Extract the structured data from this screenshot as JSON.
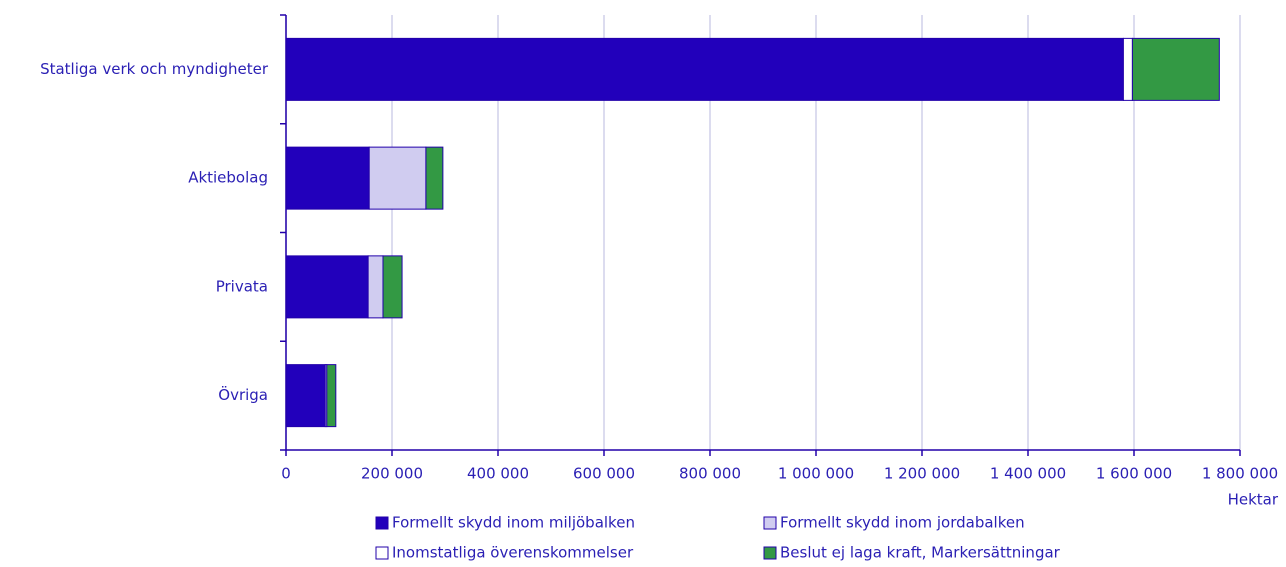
{
  "chart_data": {
    "type": "stacked-bar-horizontal",
    "categories": [
      "Statliga verk och myndigheter",
      "Aktiebolag",
      "Privata",
      "Övriga"
    ],
    "series": [
      {
        "name": "Formellt skydd inom miljöbalken",
        "color": "#2200bb",
        "values": [
          1580000,
          157000,
          155000,
          74000
        ]
      },
      {
        "name": "Formellt skydd inom jordabalken",
        "color": "#d0ccf0",
        "values": [
          0,
          107000,
          28000,
          3000
        ]
      },
      {
        "name": "Inomstatliga överenskommelser",
        "color": "#ffffff",
        "values": [
          17000,
          0,
          0,
          0
        ]
      },
      {
        "name": "Beslut ej laga kraft, Markersättningar",
        "color": "#339944",
        "values": [
          164000,
          32000,
          36000,
          17000
        ]
      }
    ],
    "xlabel": "Hektar",
    "xlim": [
      0,
      1800000
    ],
    "xticks": [
      0,
      {
        "value": 200000,
        "label": "200 000"
      },
      {
        "value": 400000,
        "label": "400 000"
      },
      {
        "value": 600000,
        "label": "600 000"
      },
      {
        "value": 800000,
        "label": "800 000"
      },
      {
        "value": 1000000,
        "label": "1 000 000"
      },
      {
        "value": 1200000,
        "label": "1 200 000"
      },
      {
        "value": 1400000,
        "label": "1 400 000"
      },
      {
        "value": 1600000,
        "label": "1 600 000"
      },
      {
        "value": 1800000,
        "label": "1 800 000"
      }
    ],
    "grid": true,
    "legend": "bottom"
  }
}
